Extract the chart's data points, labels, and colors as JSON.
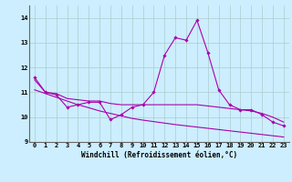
{
  "x": [
    0,
    1,
    2,
    3,
    4,
    5,
    6,
    7,
    8,
    9,
    10,
    11,
    12,
    13,
    14,
    15,
    16,
    17,
    18,
    19,
    20,
    21,
    22,
    23
  ],
  "line1": [
    11.6,
    11.0,
    10.9,
    10.4,
    10.5,
    10.6,
    10.6,
    9.9,
    10.1,
    10.4,
    10.5,
    11.0,
    12.5,
    13.2,
    13.1,
    13.9,
    12.6,
    11.1,
    10.5,
    10.3,
    10.3,
    10.1,
    9.8,
    9.65
  ],
  "trend1": [
    11.5,
    11.0,
    10.95,
    10.75,
    10.7,
    10.65,
    10.65,
    10.55,
    10.5,
    10.5,
    10.5,
    10.5,
    10.5,
    10.5,
    10.5,
    10.5,
    10.45,
    10.4,
    10.35,
    10.3,
    10.25,
    10.15,
    10.0,
    9.8
  ],
  "trend2": [
    11.1,
    10.95,
    10.8,
    10.65,
    10.5,
    10.38,
    10.25,
    10.15,
    10.05,
    9.95,
    9.88,
    9.82,
    9.76,
    9.7,
    9.65,
    9.6,
    9.55,
    9.5,
    9.45,
    9.4,
    9.35,
    9.3,
    9.25,
    9.2
  ],
  "line_color": "#aa00aa",
  "bg_color": "#cceeff",
  "grid_color": "#aacccc",
  "xlabel": "Windchill (Refroidissement éolien,°C)",
  "ylim": [
    9.0,
    14.5
  ],
  "xlim": [
    -0.5,
    23.5
  ],
  "yticks": [
    9,
    10,
    11,
    12,
    13,
    14
  ],
  "xticks": [
    0,
    1,
    2,
    3,
    4,
    5,
    6,
    7,
    8,
    9,
    10,
    11,
    12,
    13,
    14,
    15,
    16,
    17,
    18,
    19,
    20,
    21,
    22,
    23
  ],
  "tick_fontsize": 5.0,
  "xlabel_fontsize": 5.5
}
